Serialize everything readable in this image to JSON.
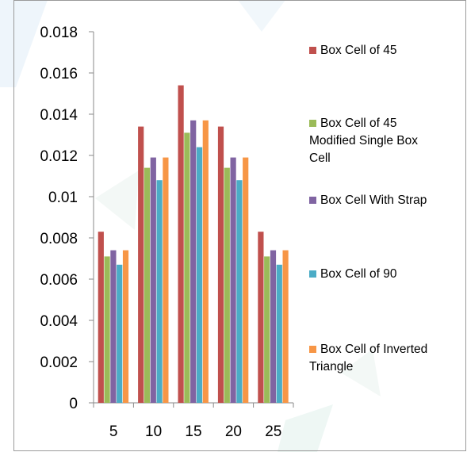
{
  "chart_data": {
    "type": "bar",
    "title": "",
    "xlabel": "",
    "ylabel": "",
    "categories": [
      "5",
      "10",
      "15",
      "20",
      "25"
    ],
    "ylim": [
      0,
      0.018
    ],
    "yticks": [
      "0",
      "0.002",
      "0.004",
      "0.006",
      "0.008",
      "0.01",
      "0.012",
      "0.014",
      "0.016",
      "0.018"
    ],
    "grid": false,
    "legend_position": "right",
    "series": [
      {
        "name": "Box Cell of 45",
        "color": "#c0504d",
        "values": [
          0.0083,
          0.0134,
          0.0154,
          0.0134,
          0.0083
        ]
      },
      {
        "name": "Box Cell of 45 Modified Single Box Cell",
        "color": "#9bbb59",
        "values": [
          0.0071,
          0.0114,
          0.0131,
          0.0114,
          0.0071
        ]
      },
      {
        "name": "Box Cell With Strap",
        "color": "#8064a2",
        "values": [
          0.0074,
          0.0119,
          0.0137,
          0.0119,
          0.0074
        ]
      },
      {
        "name": "Box Cell of 90",
        "color": "#4bacc6",
        "values": [
          0.0067,
          0.0108,
          0.0124,
          0.0108,
          0.0067
        ]
      },
      {
        "name": "Box Cell of Inverted Triangle",
        "color": "#f79646",
        "values": [
          0.0074,
          0.0119,
          0.0137,
          0.0119,
          0.0074
        ]
      }
    ]
  }
}
